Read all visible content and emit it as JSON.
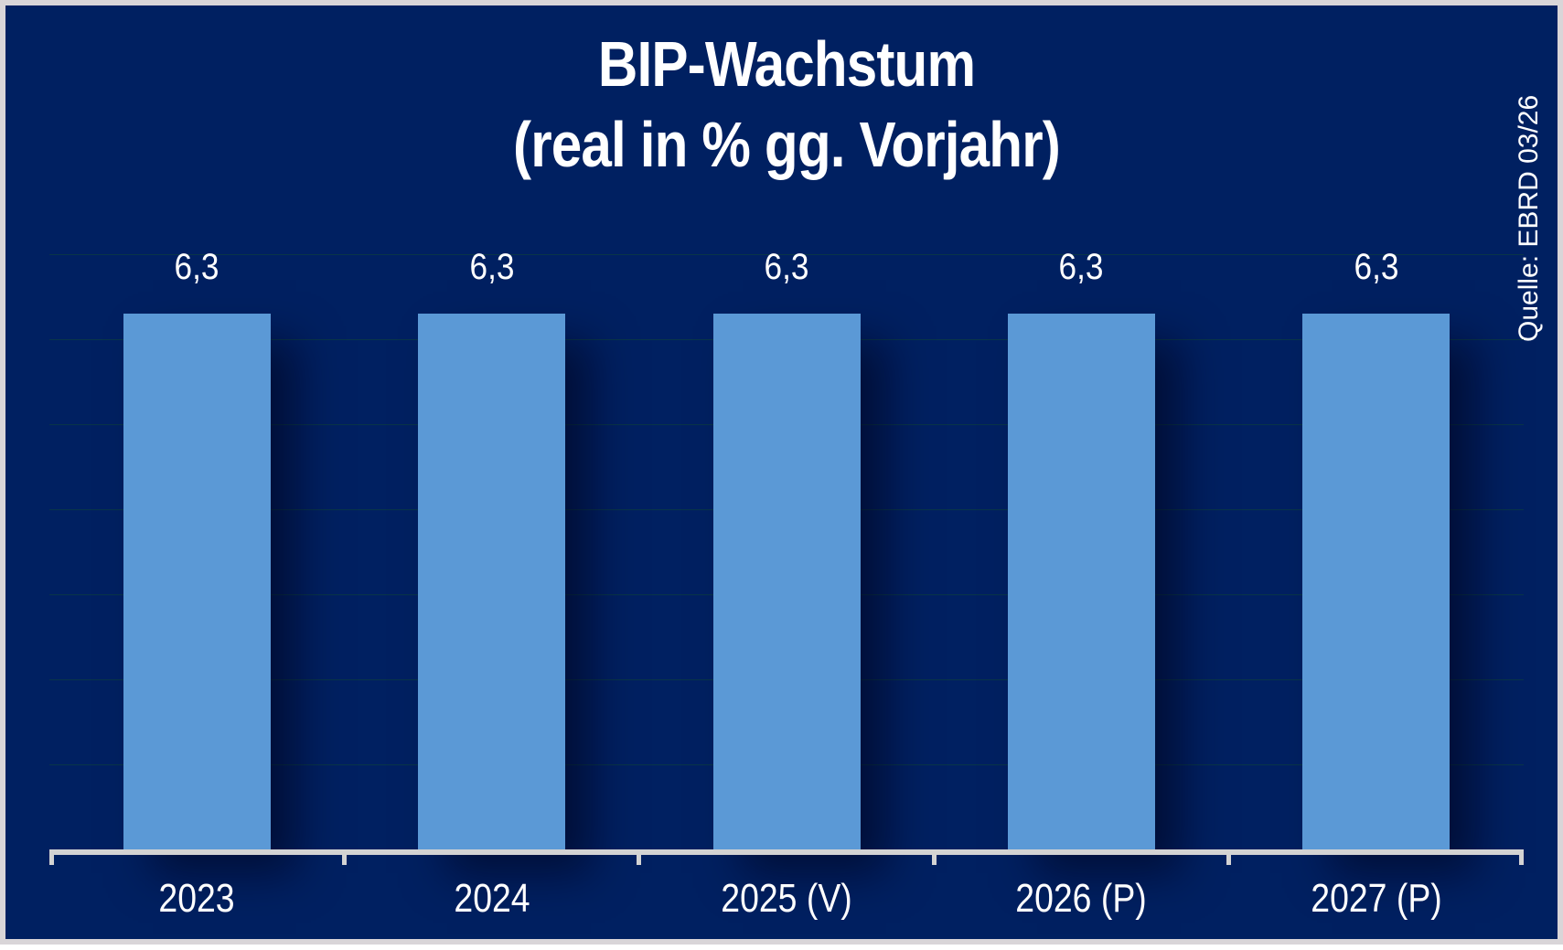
{
  "title": {
    "line1": "BIP-Wachstum",
    "line2": "(real in % gg. Vorjahr)"
  },
  "source_note": "Quelle: EBRD 03/26",
  "colors": {
    "background": "#002061",
    "bar": "#5b99d6",
    "axis": "#d3d3d3",
    "gridline": "#0a3746",
    "text": "#ffffff",
    "frame_border": "#d9d5d8"
  },
  "chart_data": {
    "type": "bar",
    "title": "BIP-Wachstum (real in % gg. Vorjahr)",
    "categories": [
      "2023",
      "2024",
      "2025 (V)",
      "2026 (P)",
      "2027 (P)"
    ],
    "values": [
      6.3,
      6.3,
      6.3,
      6.3,
      6.3
    ],
    "value_labels": [
      "6,3",
      "6,3",
      "6,3",
      "6,3",
      "6,3"
    ],
    "xlabel": "",
    "ylabel": "",
    "ylim": [
      0,
      7
    ],
    "gridline_values": [
      1,
      2,
      3,
      4,
      5,
      6,
      7
    ],
    "grid": true,
    "legend": false,
    "bar_width_fraction": 0.5,
    "source": "Quelle: EBRD 03/26"
  }
}
